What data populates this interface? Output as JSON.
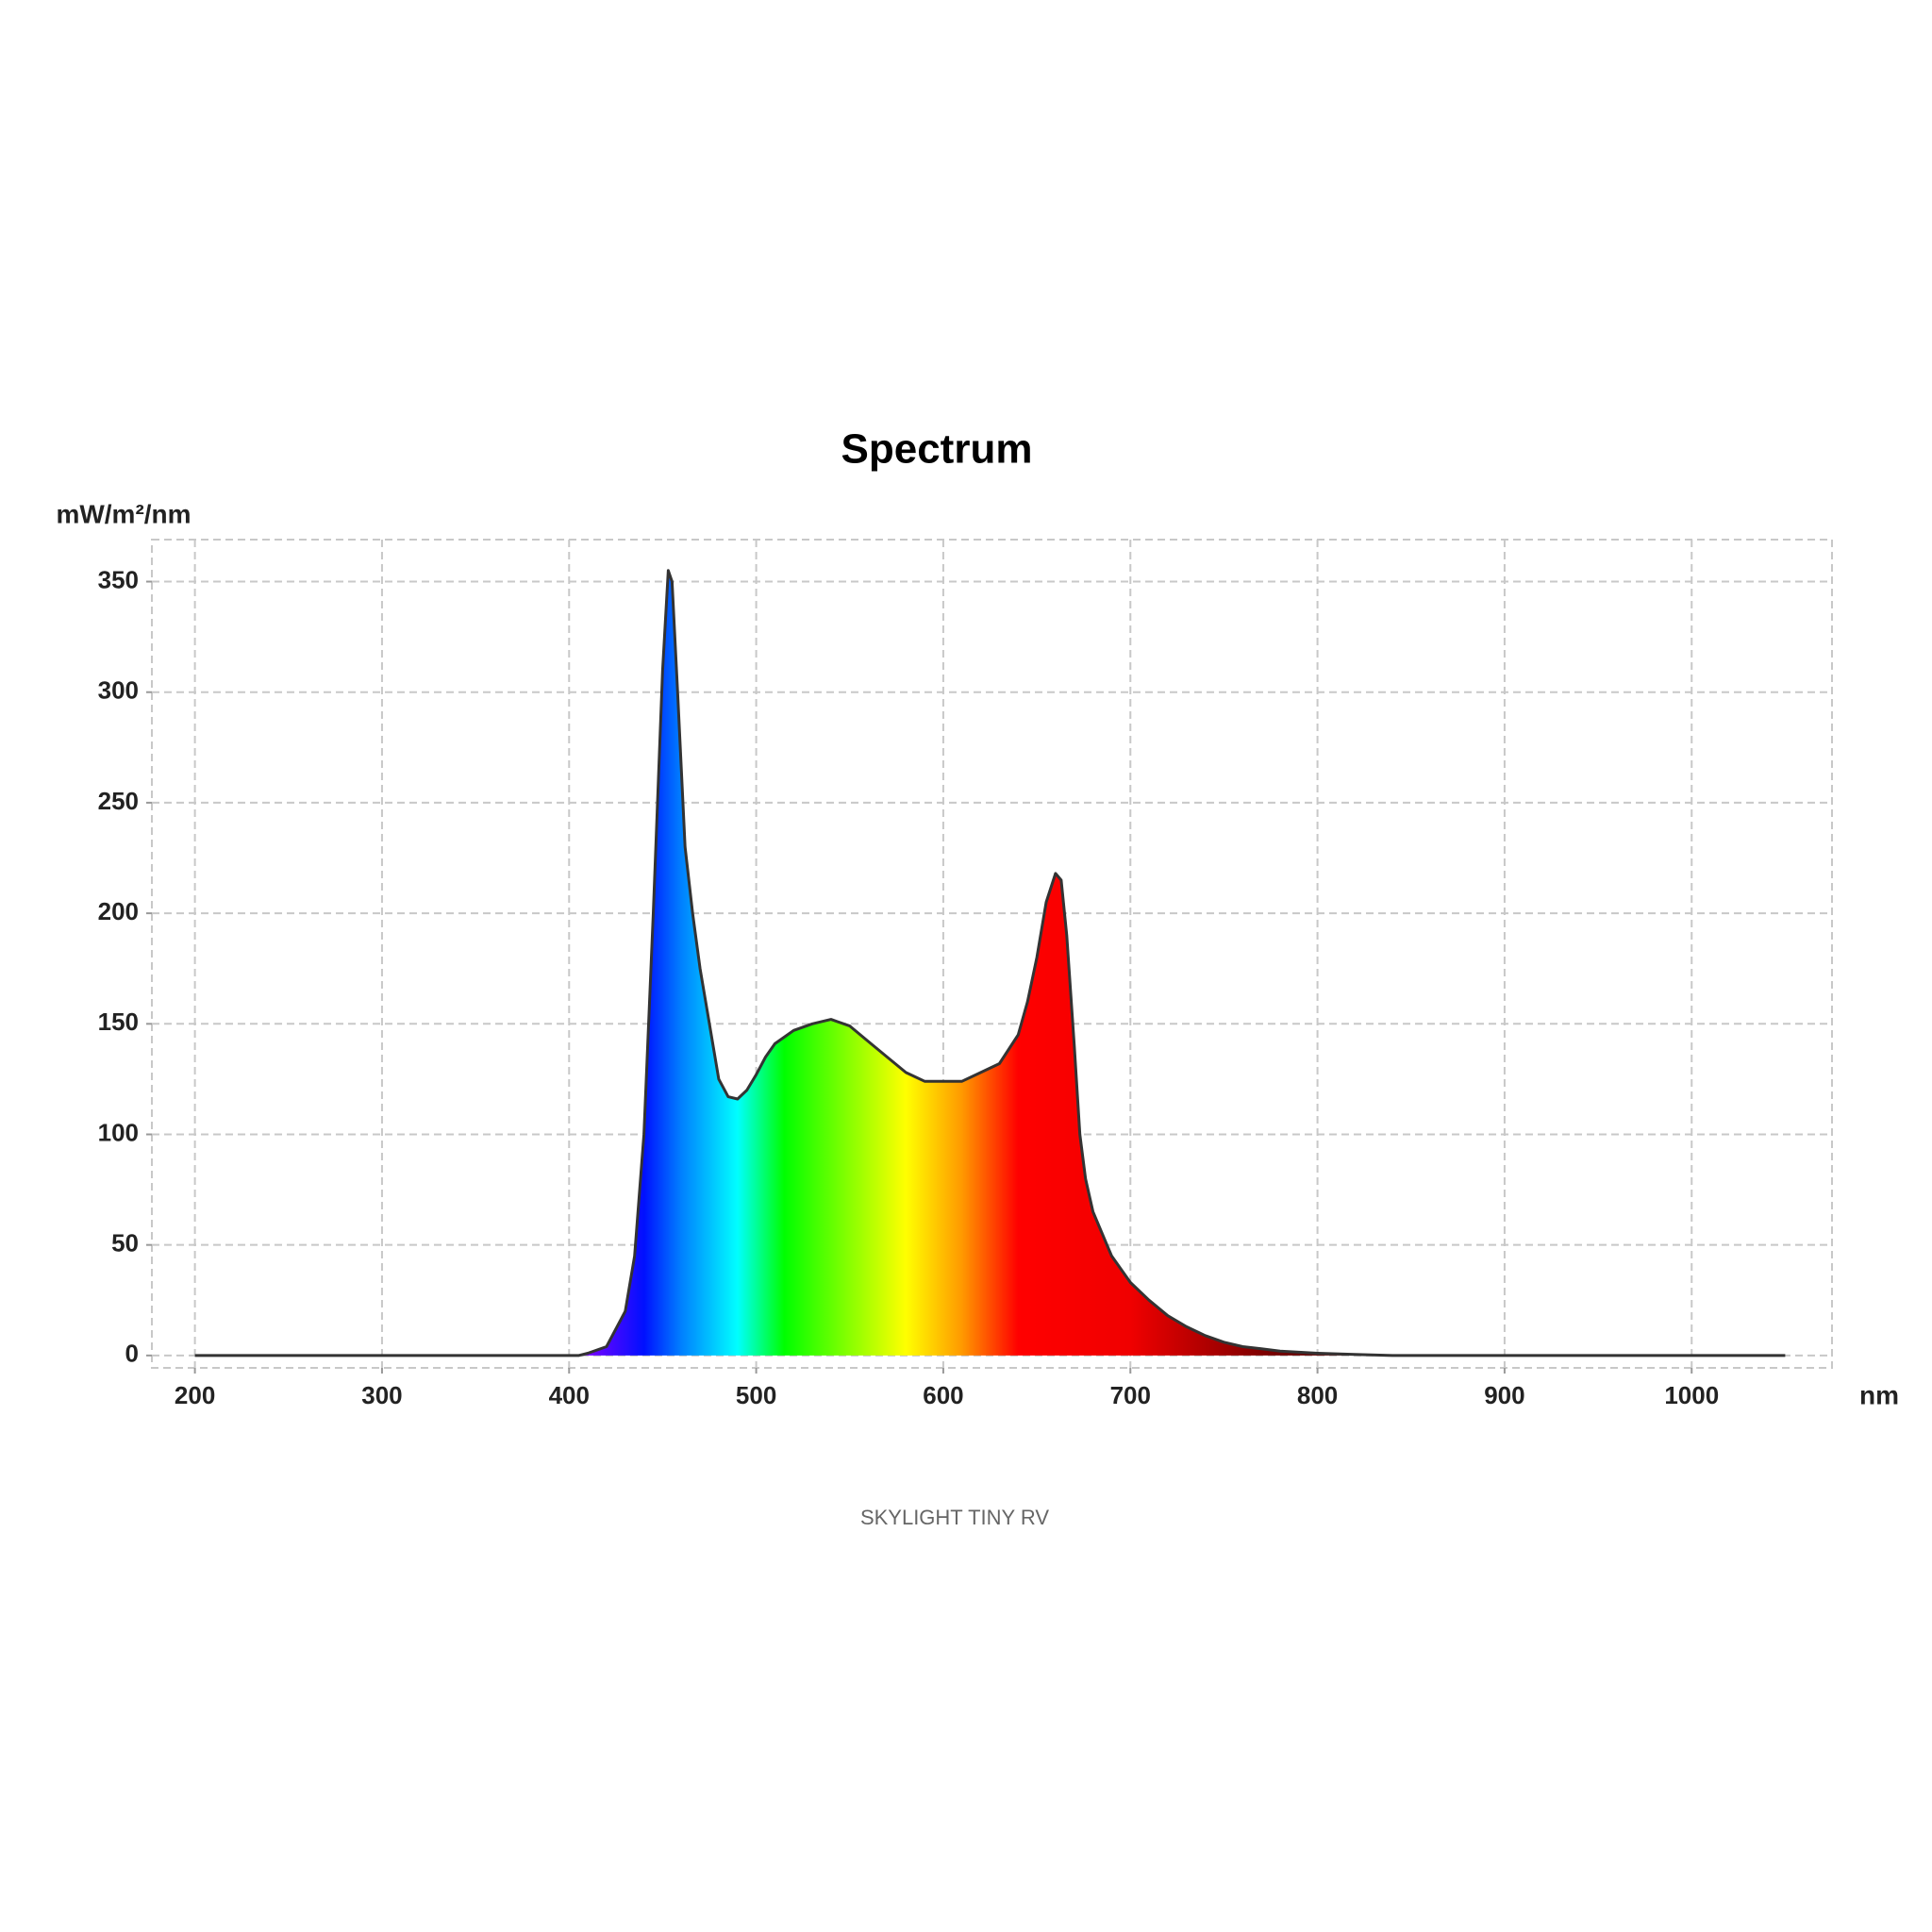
{
  "chart_data": {
    "type": "area",
    "title": "Spectrum",
    "y_label": "mW/m²/nm",
    "x_label": "nm",
    "footer": "SKYLIGHT TINY RV",
    "x": [
      200,
      300,
      400,
      405,
      410,
      420,
      430,
      435,
      440,
      445,
      450,
      453,
      455,
      458,
      462,
      466,
      470,
      475,
      480,
      485,
      490,
      495,
      500,
      505,
      510,
      520,
      530,
      540,
      550,
      560,
      570,
      580,
      590,
      600,
      610,
      620,
      630,
      640,
      645,
      650,
      655,
      660,
      663,
      666,
      670,
      673,
      676,
      680,
      690,
      700,
      710,
      720,
      730,
      740,
      750,
      760,
      770,
      780,
      790,
      800,
      820,
      840,
      900,
      1000,
      1050
    ],
    "values": [
      0,
      0,
      0,
      0,
      1,
      4,
      20,
      45,
      100,
      200,
      310,
      355,
      350,
      300,
      230,
      200,
      175,
      150,
      125,
      117,
      116,
      120,
      127,
      135,
      141,
      147,
      150,
      152,
      149,
      142,
      135,
      128,
      124,
      124,
      124,
      128,
      132,
      145,
      160,
      180,
      205,
      218,
      215,
      190,
      140,
      100,
      80,
      65,
      45,
      33,
      25,
      18,
      13,
      9,
      6,
      4,
      3,
      2,
      1.5,
      1,
      0.5,
      0,
      0,
      0,
      0
    ],
    "color": "#333333",
    "fill_gradient": [
      {
        "nm": 405,
        "color": "#8a00ff"
      },
      {
        "nm": 440,
        "color": "#0010ff"
      },
      {
        "nm": 460,
        "color": "#0080ff"
      },
      {
        "nm": 490,
        "color": "#00ffff"
      },
      {
        "nm": 515,
        "color": "#00ff00"
      },
      {
        "nm": 580,
        "color": "#ffff00"
      },
      {
        "nm": 610,
        "color": "#ff9900"
      },
      {
        "nm": 640,
        "color": "#ff0000"
      },
      {
        "nm": 700,
        "color": "#f00000"
      },
      {
        "nm": 780,
        "color": "#700000"
      },
      {
        "nm": 840,
        "color": "#3a0000"
      }
    ],
    "xlim": [
      177,
      1075
    ],
    "ylim": [
      -5.6,
      369
    ],
    "xticks": [
      200,
      300,
      400,
      500,
      600,
      700,
      800,
      900,
      1000
    ],
    "yticks": [
      0,
      50,
      100,
      150,
      200,
      250,
      300,
      350
    ],
    "grid": true
  }
}
